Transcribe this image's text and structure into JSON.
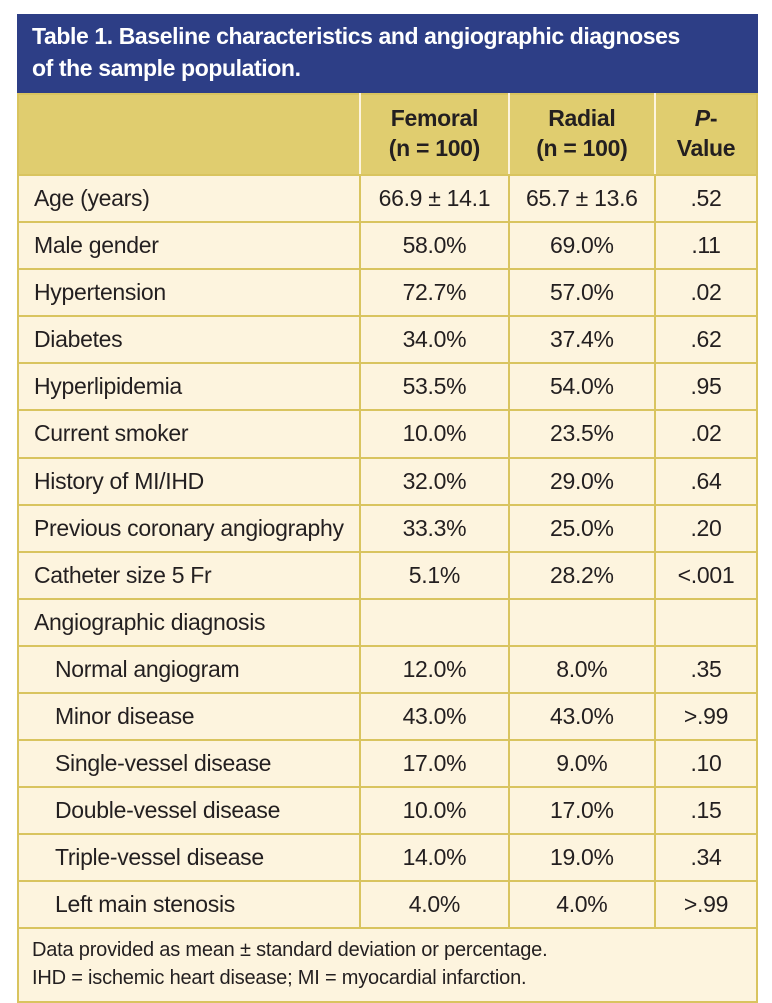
{
  "colors": {
    "header_blue": "#2d3e86",
    "header_gold": "#e0cd6f",
    "border_gold": "#d9c45f",
    "row_cream": "#fdf4de",
    "text_dark": "#231f20"
  },
  "title": {
    "line1": "Table 1. Baseline characteristics and angiographic diagnoses",
    "line2": "of the sample population."
  },
  "table": {
    "header": {
      "label": "",
      "femoral_line1": "Femoral",
      "femoral_line2": "(n = 100)",
      "radial_line1": "Radial",
      "radial_line2": "(n = 100)",
      "p_line1_italic": "P",
      "p_line1_rest": "-",
      "p_line2": "Value"
    },
    "rows": [
      {
        "label": "Age (years)",
        "femoral": "66.9 ± 14.1",
        "radial": "65.7 ± 13.6",
        "p": ".52"
      },
      {
        "label": "Male gender",
        "femoral": "58.0%",
        "radial": "69.0%",
        "p": ".11"
      },
      {
        "label": "Hypertension",
        "femoral": "72.7%",
        "radial": "57.0%",
        "p": ".02"
      },
      {
        "label": "Diabetes",
        "femoral": "34.0%",
        "radial": "37.4%",
        "p": ".62"
      },
      {
        "label": "Hyperlipidemia",
        "femoral": "53.5%",
        "radial": "54.0%",
        "p": ".95"
      },
      {
        "label": "Current smoker",
        "femoral": "10.0%",
        "radial": "23.5%",
        "p": ".02"
      },
      {
        "label": "History of MI/IHD",
        "femoral": "32.0%",
        "radial": "29.0%",
        "p": ".64"
      },
      {
        "label": "Previous coronary angiography",
        "femoral": "33.3%",
        "radial": "25.0%",
        "p": ".20"
      },
      {
        "label": "Catheter size 5 Fr",
        "femoral": "5.1%",
        "radial": "28.2%",
        "p": "<.001"
      },
      {
        "label": "Angiographic diagnosis",
        "femoral": "",
        "radial": "",
        "p": ""
      },
      {
        "label": "Normal angiogram",
        "femoral": "12.0%",
        "radial": "8.0%",
        "p": ".35"
      },
      {
        "label": "Minor disease",
        "femoral": "43.0%",
        "radial": "43.0%",
        "p": ">.99"
      },
      {
        "label": "Single-vessel disease",
        "femoral": "17.0%",
        "radial": "9.0%",
        "p": ".10"
      },
      {
        "label": "Double-vessel disease",
        "femoral": "10.0%",
        "radial": "17.0%",
        "p": ".15"
      },
      {
        "label": "Triple-vessel disease",
        "femoral": "14.0%",
        "radial": "19.0%",
        "p": ".34"
      },
      {
        "label": "Left main stenosis",
        "femoral": "4.0%",
        "radial": "4.0%",
        "p": ">.99"
      }
    ],
    "footnote_line1": "Data provided as mean ± standard deviation or percentage.",
    "footnote_line2": "IHD = ischemic heart disease; MI = myocardial infarction."
  }
}
